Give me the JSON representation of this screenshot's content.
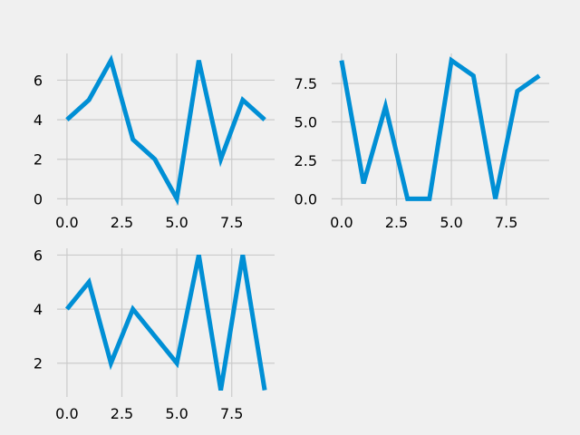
{
  "figure": {
    "background": "#f0f0f0",
    "grid_color": "#cbcbcb",
    "line_color": "#008fd5"
  },
  "chart_data": [
    {
      "type": "line",
      "title": "",
      "xlabel": "",
      "ylabel": "",
      "grid": true,
      "x": [
        0,
        1,
        2,
        3,
        4,
        5,
        6,
        7,
        8,
        9
      ],
      "series": [
        {
          "values": [
            4,
            5,
            7,
            3,
            2,
            0,
            7,
            2,
            5,
            4
          ]
        }
      ],
      "xlim": [
        -0.45,
        9.45
      ],
      "ylim": [
        -0.35,
        7.35
      ],
      "xticks": [
        0.0,
        2.5,
        5.0,
        7.5
      ],
      "xtick_labels": [
        "0.0",
        "2.5",
        "5.0",
        "7.5"
      ],
      "yticks": [
        0,
        2,
        4,
        6
      ],
      "ytick_labels": [
        "0",
        "2",
        "4",
        "6"
      ]
    },
    {
      "type": "line",
      "title": "",
      "xlabel": "",
      "ylabel": "",
      "grid": true,
      "x": [
        0,
        1,
        2,
        3,
        4,
        5,
        6,
        7,
        8,
        9
      ],
      "series": [
        {
          "values": [
            9,
            1,
            6,
            0,
            0,
            9,
            8,
            0,
            7,
            8
          ]
        }
      ],
      "xlim": [
        -0.45,
        9.45
      ],
      "ylim": [
        -0.45,
        9.45
      ],
      "xticks": [
        0.0,
        2.5,
        5.0,
        7.5
      ],
      "xtick_labels": [
        "0.0",
        "2.5",
        "5.0",
        "7.5"
      ],
      "yticks": [
        0.0,
        2.5,
        5.0,
        7.5
      ],
      "ytick_labels": [
        "0.0",
        "2.5",
        "5.0",
        "7.5"
      ]
    },
    {
      "type": "line",
      "title": "",
      "xlabel": "",
      "ylabel": "",
      "grid": true,
      "x": [
        0,
        1,
        2,
        3,
        4,
        5,
        6,
        7,
        8,
        9
      ],
      "series": [
        {
          "values": [
            4,
            5,
            2,
            4,
            3,
            2,
            6,
            1,
            6,
            1
          ]
        }
      ],
      "xlim": [
        -0.45,
        9.45
      ],
      "ylim": [
        0.75,
        6.25
      ],
      "xticks": [
        0.0,
        2.5,
        5.0,
        7.5
      ],
      "xtick_labels": [
        "0.0",
        "2.5",
        "5.0",
        "7.5"
      ],
      "yticks": [
        2,
        4,
        6
      ],
      "ytick_labels": [
        "2",
        "4",
        "6"
      ]
    }
  ]
}
